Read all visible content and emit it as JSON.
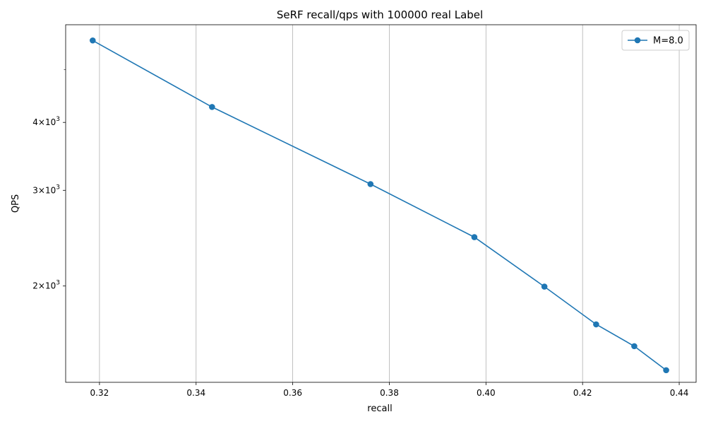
{
  "chart_data": {
    "type": "line",
    "title": "SeRF recall/qps with 100000 real Label",
    "xlabel": "recall",
    "ylabel": "QPS",
    "xlim": [
      0.313,
      0.4435
    ],
    "ylim": [
      1330,
      6050
    ],
    "yscale": "log",
    "grid": "vertical (x) only",
    "legend_position": "top-right",
    "xticks": [
      0.32,
      0.34,
      0.36,
      0.38,
      0.4,
      0.42,
      0.44
    ],
    "xtick_labels": [
      "0.32",
      "0.34",
      "0.36",
      "0.38",
      "0.40",
      "0.42",
      "0.44"
    ],
    "yticks": [
      2000,
      3000,
      4000
    ],
    "ytick_labels": [
      {
        "base": "2",
        "exp": "3"
      },
      {
        "base": "3",
        "exp": "3"
      },
      {
        "base": "4",
        "exp": "3"
      }
    ],
    "yminor_ticks_unlabeled": [
      5000
    ],
    "series": [
      {
        "name": "M=8.0",
        "color": "#1f77b4",
        "x": [
          0.3186,
          0.3433,
          0.3761,
          0.3976,
          0.4121,
          0.4228,
          0.4307,
          0.4373
        ],
        "y": [
          5660,
          4270,
          3080,
          2460,
          1995,
          1700,
          1550,
          1400
        ]
      }
    ]
  }
}
